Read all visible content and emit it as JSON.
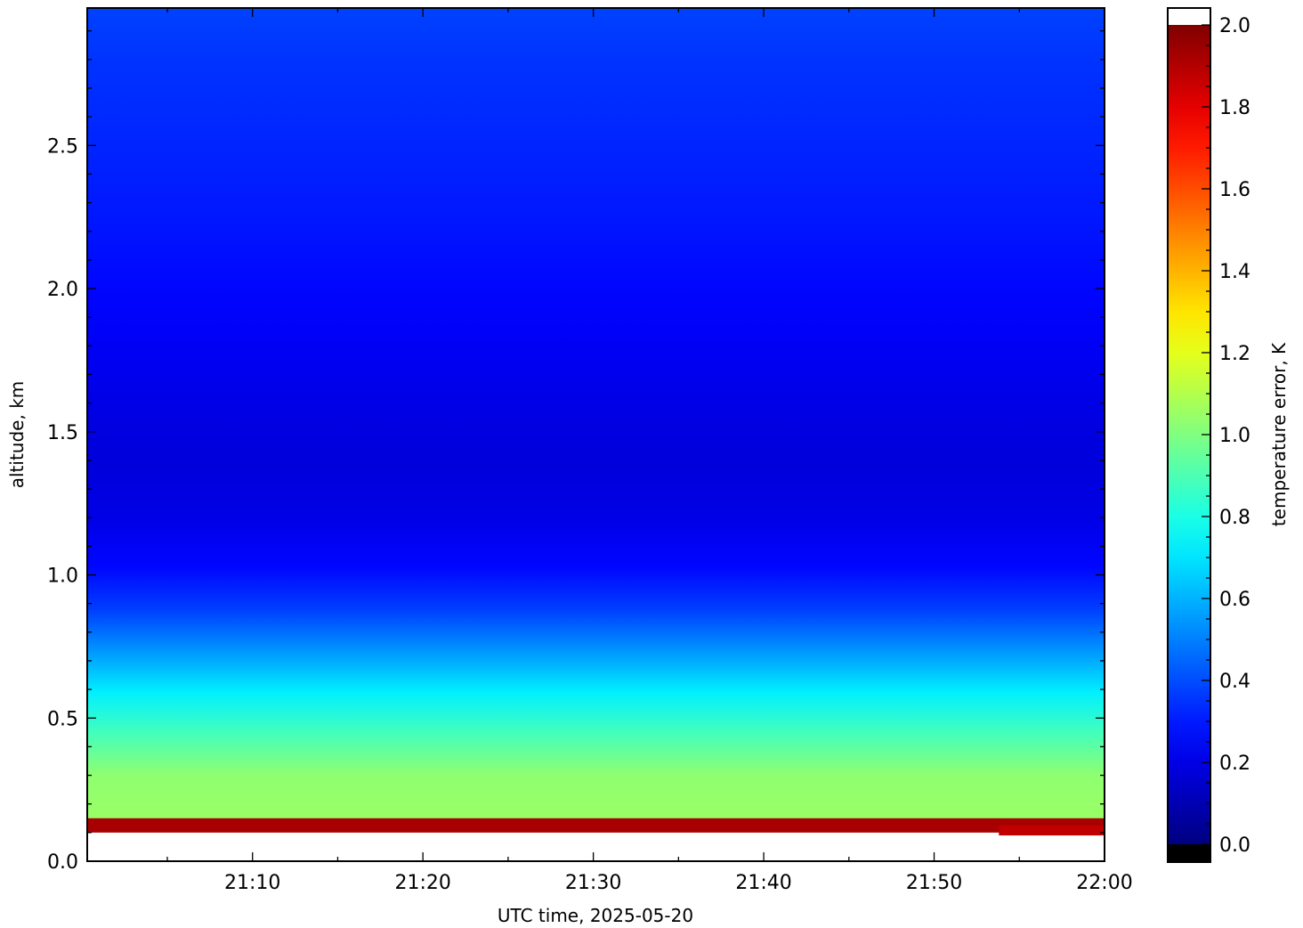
{
  "chart_data": {
    "type": "heatmap",
    "title": "",
    "xlabel": "UTC time,  2025-05-20",
    "ylabel": "altitude, km",
    "colorbar_label": "temperature error, K",
    "x_ticks": [
      "21:10",
      "21:20",
      "21:30",
      "21:40",
      "21:50",
      "22:00"
    ],
    "x_tick_minutes": [
      10,
      20,
      30,
      40,
      50,
      60
    ],
    "xlim_minutes_after_21_00": [
      0.3,
      60
    ],
    "y_ticks": [
      "0.0",
      "0.5",
      "1.0",
      "1.5",
      "2.0",
      "2.5"
    ],
    "ylim": [
      0,
      2.98
    ],
    "colorbar_ticks": [
      "0.0",
      "0.2",
      "0.4",
      "0.6",
      "0.8",
      "1.0",
      "1.2",
      "1.4",
      "1.6",
      "1.8",
      "2.0"
    ],
    "clim": [
      0,
      2
    ],
    "colormap": "jet",
    "no_data_color": "#ffffff",
    "altitude_profile_km": [
      0.0,
      0.1,
      0.15,
      0.3,
      0.45,
      0.59,
      0.73,
      0.88,
      1.03,
      1.2,
      1.4,
      1.6,
      1.8,
      2.0,
      2.2,
      2.4,
      2.6,
      2.8,
      2.98
    ],
    "error_profile_K": [
      null,
      1.92,
      1.05,
      1.03,
      0.88,
      0.72,
      0.55,
      0.37,
      0.26,
      0.2,
      0.18,
      0.2,
      0.23,
      0.26,
      0.29,
      0.31,
      0.33,
      0.35,
      0.38
    ]
  }
}
